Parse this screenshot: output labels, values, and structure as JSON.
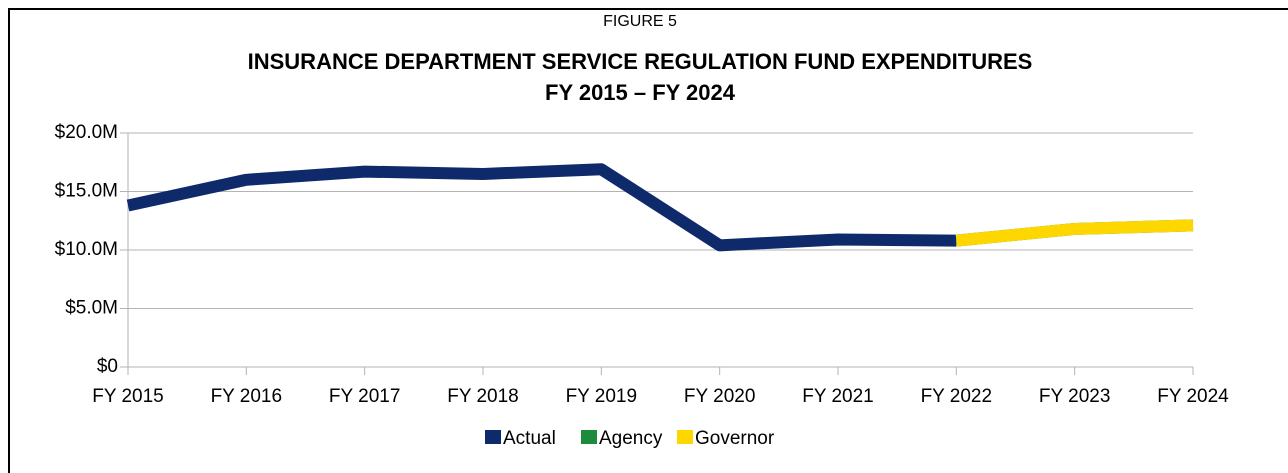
{
  "chart_data": {
    "type": "line",
    "label": "FIGURE 5",
    "title": "INSURANCE DEPARTMENT SERVICE REGULATION FUND EXPENDITURES",
    "subtitle": "FY 2015 – FY 2024",
    "categories": [
      "FY 2015",
      "FY 2016",
      "FY 2017",
      "FY 2018",
      "FY 2019",
      "FY 2020",
      "FY 2021",
      "FY 2022",
      "FY 2023",
      "FY 2024"
    ],
    "series": [
      {
        "name": "Actual",
        "color": "#0f2a6b",
        "values": [
          13800000,
          16000000,
          16700000,
          16500000,
          16900000,
          10400000,
          10900000,
          10800000,
          null,
          null
        ]
      },
      {
        "name": "Agency",
        "color": "#1e8a3c",
        "values": [
          null,
          null,
          null,
          null,
          null,
          null,
          null,
          10800000,
          11800000,
          12100000
        ]
      },
      {
        "name": "Governor",
        "color": "#ffd700",
        "values": [
          null,
          null,
          null,
          null,
          null,
          null,
          null,
          10800000,
          11800000,
          12100000
        ]
      }
    ],
    "ylim": [
      0,
      20000000
    ],
    "yticks": [
      {
        "value": 0,
        "label": "$0"
      },
      {
        "value": 5000000,
        "label": "$5.0M"
      },
      {
        "value": 10000000,
        "label": "$10.0M"
      },
      {
        "value": 15000000,
        "label": "$15.0M"
      },
      {
        "value": 20000000,
        "label": "$20.0M"
      }
    ],
    "grid": true,
    "legend": "bottom"
  }
}
